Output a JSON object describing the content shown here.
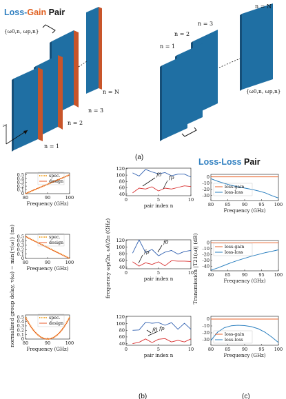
{
  "colors": {
    "plate_face": "#1f6fa3",
    "plate_side": "#1a5f8e",
    "gain_edge": "#c8552a",
    "blue": "#3060b0",
    "red": "#d83030",
    "loss_gain_line": "#e8622a",
    "loss_loss_line": "#2a7fbf",
    "spec_dot": "#f0a020",
    "design_line": "#e85a28",
    "title_blue": "#2f7fc0",
    "title_orange": "#e06020"
  },
  "titles": {
    "lg_loss": "Loss-",
    "lg_gain": "Gain",
    "lg_pair": " Pair",
    "ll_loss": "Loss-Loss",
    "ll_pair": " Pair"
  },
  "labels": {
    "cap_a": "(a)",
    "cap_b": "(b)",
    "cap_c": "(c)",
    "left_n1": "n = 1",
    "left_n2": "n = 2",
    "left_n3": "n = 3",
    "left_nN": "n = N",
    "left_omega": "{ω0,n, ωp,n}",
    "right_n1": "n = 1",
    "right_n2": "n = 2",
    "right_n3": "n = 3",
    "right_nN": "n = N",
    "right_omega": "{ω0,n, ωp,n}",
    "axis_y_small": "y"
  },
  "chart_data": [
    {
      "id": "gd-linear-up",
      "type": "line",
      "xlabel": "Frequency (GHz)",
      "x_ticks": [
        "80",
        "90",
        "100"
      ],
      "y_ticks": [
        "0",
        "0.1",
        "0.2",
        "0.3",
        "0.4",
        "0.5"
      ],
      "xlim": [
        80,
        100
      ],
      "ylim": [
        0,
        0.55
      ],
      "legend": [
        "spec.",
        "design"
      ],
      "series": [
        {
          "name": "spec.",
          "x": [
            80,
            82,
            84,
            86,
            88,
            90,
            92,
            94,
            96,
            98,
            100
          ],
          "y": [
            0,
            0.05,
            0.1,
            0.15,
            0.2,
            0.25,
            0.3,
            0.35,
            0.4,
            0.45,
            0.5
          ]
        },
        {
          "name": "design",
          "x": [
            80,
            82,
            84,
            86,
            88,
            90,
            92,
            94,
            96,
            98,
            100
          ],
          "y": [
            0,
            0.055,
            0.105,
            0.152,
            0.2,
            0.25,
            0.3,
            0.35,
            0.4,
            0.45,
            0.5
          ]
        }
      ]
    },
    {
      "id": "gd-linear-down",
      "type": "line",
      "xlabel": "Frequency (GHz)",
      "x_ticks": [
        "80",
        "90",
        "100"
      ],
      "y_ticks": [
        "0",
        "0.1",
        "0.2",
        "0.3",
        "0.4",
        "0.5"
      ],
      "xlim": [
        80,
        100
      ],
      "ylim": [
        0,
        0.55
      ],
      "legend": [
        "spec.",
        "design"
      ],
      "series": [
        {
          "name": "spec.",
          "x": [
            80,
            82,
            84,
            86,
            88,
            90,
            92,
            94,
            96,
            98,
            100
          ],
          "y": [
            0.5,
            0.45,
            0.4,
            0.35,
            0.3,
            0.25,
            0.2,
            0.15,
            0.1,
            0.05,
            0
          ]
        },
        {
          "name": "design",
          "x": [
            80,
            82,
            84,
            86,
            88,
            90,
            92,
            94,
            96,
            98,
            100
          ],
          "y": [
            0.5,
            0.448,
            0.395,
            0.345,
            0.295,
            0.245,
            0.195,
            0.145,
            0.095,
            0.045,
            0
          ]
        }
      ]
    },
    {
      "id": "gd-parabola",
      "type": "line",
      "xlabel": "Frequency (GHz)",
      "x_ticks": [
        "80",
        "90",
        "100"
      ],
      "y_ticks": [
        "0",
        "0.1",
        "0.2",
        "0.3",
        "0.4",
        "0.5"
      ],
      "xlim": [
        80,
        100
      ],
      "ylim": [
        0,
        0.55
      ],
      "legend": [
        "spec.",
        "design"
      ],
      "series": [
        {
          "name": "spec.",
          "x": [
            80,
            82,
            84,
            86,
            88,
            90,
            92,
            94,
            96,
            98,
            100
          ],
          "y": [
            0.5,
            0.32,
            0.18,
            0.08,
            0.02,
            0,
            0.02,
            0.08,
            0.18,
            0.32,
            0.5
          ]
        },
        {
          "name": "design",
          "x": [
            80,
            82,
            84,
            86,
            88,
            90,
            92,
            94,
            96,
            98,
            100
          ],
          "y": [
            0.49,
            0.315,
            0.175,
            0.078,
            0.02,
            0.002,
            0.02,
            0.078,
            0.175,
            0.315,
            0.49
          ]
        }
      ]
    },
    {
      "id": "freq-1",
      "type": "line",
      "xlabel": "pair index n",
      "x_ticks": [
        "0",
        "5",
        "10"
      ],
      "y_ticks": [
        "40",
        "60",
        "80",
        "100",
        "120"
      ],
      "xlim": [
        0,
        10
      ],
      "ylim": [
        35,
        122
      ],
      "annotations": [
        "f0",
        "fp"
      ],
      "series": [
        {
          "name": "f0",
          "x": [
            1,
            2,
            3,
            4,
            5,
            6,
            7,
            8,
            9,
            10
          ],
          "y": [
            107,
            97,
            118,
            110,
            104,
            108,
            98,
            103,
            103,
            94
          ]
        },
        {
          "name": "fp",
          "x": [
            1,
            2,
            3,
            4,
            5,
            6,
            7,
            8,
            9,
            10
          ],
          "y": [
            44,
            59,
            56,
            63,
            50,
            59,
            56,
            61,
            66,
            64
          ]
        }
      ]
    },
    {
      "id": "freq-2",
      "type": "line",
      "xlabel": "pair index n",
      "x_ticks": [
        "0",
        "5",
        "10"
      ],
      "y_ticks": [
        "40",
        "60",
        "80",
        "100",
        "120"
      ],
      "xlim": [
        0,
        10
      ],
      "ylim": [
        35,
        122
      ],
      "annotations": [
        "f0",
        "fp"
      ],
      "series": [
        {
          "name": "f0",
          "x": [
            1,
            2,
            3,
            4,
            5,
            6,
            7,
            8,
            9,
            10
          ],
          "y": [
            82,
            122,
            84,
            93,
            74,
            85,
            90,
            79,
            87,
            90
          ]
        },
        {
          "name": "fp",
          "x": [
            1,
            2,
            3,
            4,
            5,
            6,
            7,
            8,
            9,
            10
          ],
          "y": [
            56,
            43,
            53,
            48,
            56,
            44,
            59,
            58,
            58,
            57
          ]
        }
      ]
    },
    {
      "id": "freq-3",
      "type": "line",
      "xlabel": "pair index n",
      "x_ticks": [
        "0",
        "5",
        "10"
      ],
      "y_ticks": [
        "40",
        "60",
        "80",
        "100",
        "120"
      ],
      "xlim": [
        0,
        10
      ],
      "ylim": [
        35,
        122
      ],
      "annotations": [
        "f0",
        "fp"
      ],
      "series": [
        {
          "name": "f0",
          "x": [
            1,
            2,
            3,
            4,
            5,
            6,
            7,
            8,
            9,
            10
          ],
          "y": [
            80,
            81,
            104,
            101,
            103,
            95,
            103,
            83,
            101,
            83
          ]
        },
        {
          "name": "fp",
          "x": [
            1,
            2,
            3,
            4,
            5,
            6,
            7,
            8,
            9,
            10
          ],
          "y": [
            40,
            44,
            54,
            43,
            53,
            55,
            45,
            50,
            45,
            54
          ]
        }
      ]
    },
    {
      "id": "tx-1",
      "type": "line",
      "xlabel": "Frequency (GHz)",
      "x_ticks": [
        "80",
        "85",
        "90",
        "95",
        "100"
      ],
      "y_ticks": [
        "-30",
        "-20",
        "-10",
        "0"
      ],
      "xlim": [
        80,
        100
      ],
      "ylim": [
        -38,
        4
      ],
      "legend": [
        "loss-gain",
        "loss-loss"
      ],
      "series": [
        {
          "name": "loss-gain",
          "x": [
            80,
            100
          ],
          "y": [
            0,
            0
          ]
        },
        {
          "name": "loss-loss",
          "x": [
            80,
            82,
            84,
            86,
            88,
            90,
            92,
            94,
            96,
            98,
            100
          ],
          "y": [
            -3,
            -7,
            -10.5,
            -13.5,
            -16,
            -18,
            -20,
            -22.5,
            -25.5,
            -30,
            -34
          ]
        }
      ]
    },
    {
      "id": "tx-2",
      "type": "line",
      "xlabel": "Frequency (GHz)",
      "x_ticks": [
        "80",
        "85",
        "90",
        "95",
        "100"
      ],
      "y_ticks": [
        "-40",
        "-30",
        "-20",
        "-10",
        "0"
      ],
      "xlim": [
        80,
        100
      ],
      "ylim": [
        -48,
        4
      ],
      "legend": [
        "loss-gain",
        "loss-loss"
      ],
      "series": [
        {
          "name": "loss-gain",
          "x": [
            80,
            100
          ],
          "y": [
            0,
            0
          ]
        },
        {
          "name": "loss-loss",
          "x": [
            80,
            82,
            84,
            86,
            88,
            90,
            92,
            94,
            96,
            98,
            100
          ],
          "y": [
            -47,
            -43,
            -38.5,
            -34,
            -30,
            -26.5,
            -23,
            -20,
            -17,
            -14.5,
            -12
          ]
        }
      ]
    },
    {
      "id": "tx-3",
      "type": "line",
      "xlabel": "Frequency (GHz)",
      "x_ticks": [
        "80",
        "85",
        "90",
        "95",
        "100"
      ],
      "y_ticks": [
        "-30",
        "-20",
        "-10",
        "0"
      ],
      "xlim": [
        80,
        100
      ],
      "ylim": [
        -38,
        4
      ],
      "legend": [
        "loss-gain",
        "loss-loss"
      ],
      "series": [
        {
          "name": "loss-gain",
          "x": [
            80,
            100
          ],
          "y": [
            0,
            0
          ]
        },
        {
          "name": "loss-loss",
          "x": [
            80,
            82,
            84,
            86,
            88,
            90,
            92,
            94,
            96,
            98,
            100
          ],
          "y": [
            -31,
            -19,
            -12.5,
            -9.8,
            -9,
            -9.5,
            -11,
            -14,
            -19,
            -26,
            -34
          ]
        }
      ]
    }
  ],
  "shared_axis": {
    "b_left_ylabel": "normalized group delay, τ(ω) − min{τ(ω)} (ns)",
    "b_mid_ylabel": "frequency ωp/2π, ω0/2π (GHz)",
    "c_ylabel": "Transmission |T21(ω)| (dB)"
  }
}
